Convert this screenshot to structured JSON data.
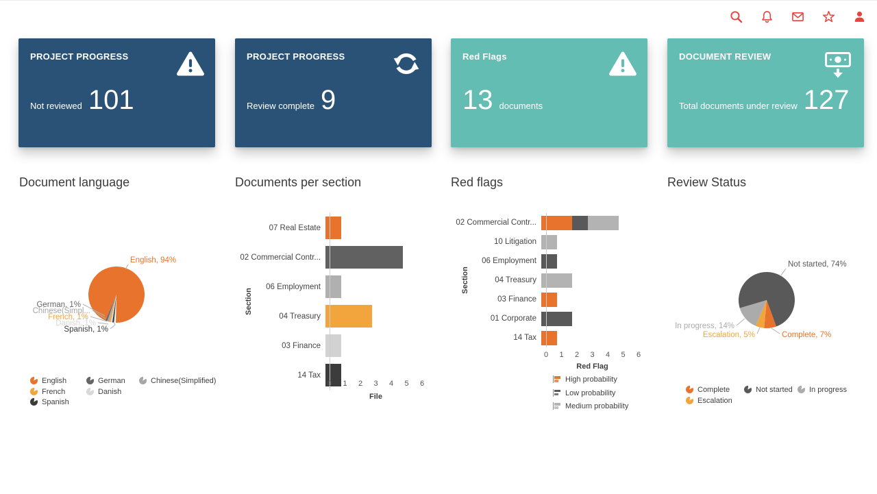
{
  "header": {
    "accent_color": "#e9433e",
    "icons": [
      "search",
      "notifications",
      "mail",
      "favorites",
      "profile"
    ]
  },
  "cards": [
    {
      "title": "PROJECT PROGRESS",
      "icon": "warning-triangle",
      "stat_label": "Not reviewed",
      "stat_value": "101",
      "bg_color": "#2a5276"
    },
    {
      "title": "PROJECT PROGRESS",
      "icon": "refresh",
      "stat_label": "Review complete",
      "stat_value": "9",
      "bg_color": "#2a5276"
    },
    {
      "title": "Red Flags",
      "icon": "warning-triangle",
      "stat_label": "documents",
      "stat_value": "13",
      "bg_color": "#63bdb3"
    },
    {
      "title": "DOCUMENT REVIEW",
      "icon": "cash-review",
      "stat_label": "Total documents under review",
      "stat_value": "127",
      "bg_color": "#63bdb3"
    }
  ],
  "sections": {
    "language_title": "Document language",
    "per_section_title": "Documents per section",
    "red_flags_title": "Red flags",
    "review_title": "Review Status"
  },
  "chart_data": {
    "document_language": {
      "type": "pie",
      "title": "Document language",
      "start_angle": 185,
      "slices": [
        {
          "name": "Spanish",
          "value": 1,
          "color": "#3c3c3c",
          "label": "Spanish, 1%"
        },
        {
          "name": "Danish",
          "value": 1,
          "color": "#d8d8d8",
          "label": "Danish, 1%"
        },
        {
          "name": "French",
          "value": 1,
          "color": "#f2a43d",
          "label": "French, 1%"
        },
        {
          "name": "Chinese(Simplified)",
          "value": 1,
          "color": "#a6a6a6",
          "label": "Chinese(Simpl..."
        },
        {
          "name": "German",
          "value": 1,
          "color": "#666666",
          "label": "German, 1%"
        },
        {
          "name": "English",
          "value": 94,
          "color": "#e8732c",
          "label": "English, 94%"
        }
      ]
    },
    "documents_per_section": {
      "type": "bar",
      "orientation": "horizontal",
      "title": "Documents per section",
      "categories": [
        "07 Real Estate",
        "02 Commercial Contr...",
        "06 Employment",
        "04 Treasury",
        "03 Finance",
        "14 Tax"
      ],
      "values": [
        1,
        5,
        1,
        3,
        1,
        1
      ],
      "colors": [
        "#e8732c",
        "#616161",
        "#b0b0b0",
        "#f2a43d",
        "#d2d2d2",
        "#3c3c3c"
      ],
      "xlabel": "File",
      "ylabel": "Section",
      "xlim": [
        0,
        6
      ],
      "ticks": [
        "0",
        "1",
        "2",
        "3",
        "4",
        "5",
        "6"
      ]
    },
    "red_flags": {
      "type": "bar",
      "orientation": "horizontal",
      "stacked": true,
      "title": "Red flags",
      "categories": [
        "02 Commercial Contr...",
        "10 Litigation",
        "06 Employment",
        "04 Treasury",
        "03 Finance",
        "01 Corporate",
        "14 Tax"
      ],
      "series": [
        {
          "name": "High probability",
          "color": "#e8732c",
          "values": [
            2,
            0,
            0,
            0,
            1,
            0,
            1
          ]
        },
        {
          "name": "Low probability",
          "color": "#595959",
          "values": [
            1,
            0,
            1,
            0,
            0,
            2,
            0
          ]
        },
        {
          "name": "Medium probability",
          "color": "#b3b3b3",
          "values": [
            2,
            1,
            0,
            2,
            0,
            0,
            0
          ]
        }
      ],
      "xlabel": "Red Flag",
      "ylabel": "Section",
      "xlim": [
        0,
        6
      ],
      "ticks": [
        "0",
        "1",
        "2",
        "3",
        "4",
        "5",
        "6"
      ]
    },
    "review_status": {
      "type": "pie",
      "title": "Review Status",
      "start_angle": 160,
      "slices": [
        {
          "name": "Complete",
          "value": 7,
          "color": "#e8732c",
          "label": "Complete, 7%"
        },
        {
          "name": "Escalation",
          "value": 5,
          "color": "#f2a43d",
          "label": "Escalation, 5%"
        },
        {
          "name": "In progress",
          "value": 14,
          "color": "#ababab",
          "label": "In progress, 14%"
        },
        {
          "name": "Not started",
          "value": 74,
          "color": "#595959",
          "label": "Not started, 74%"
        }
      ]
    }
  }
}
